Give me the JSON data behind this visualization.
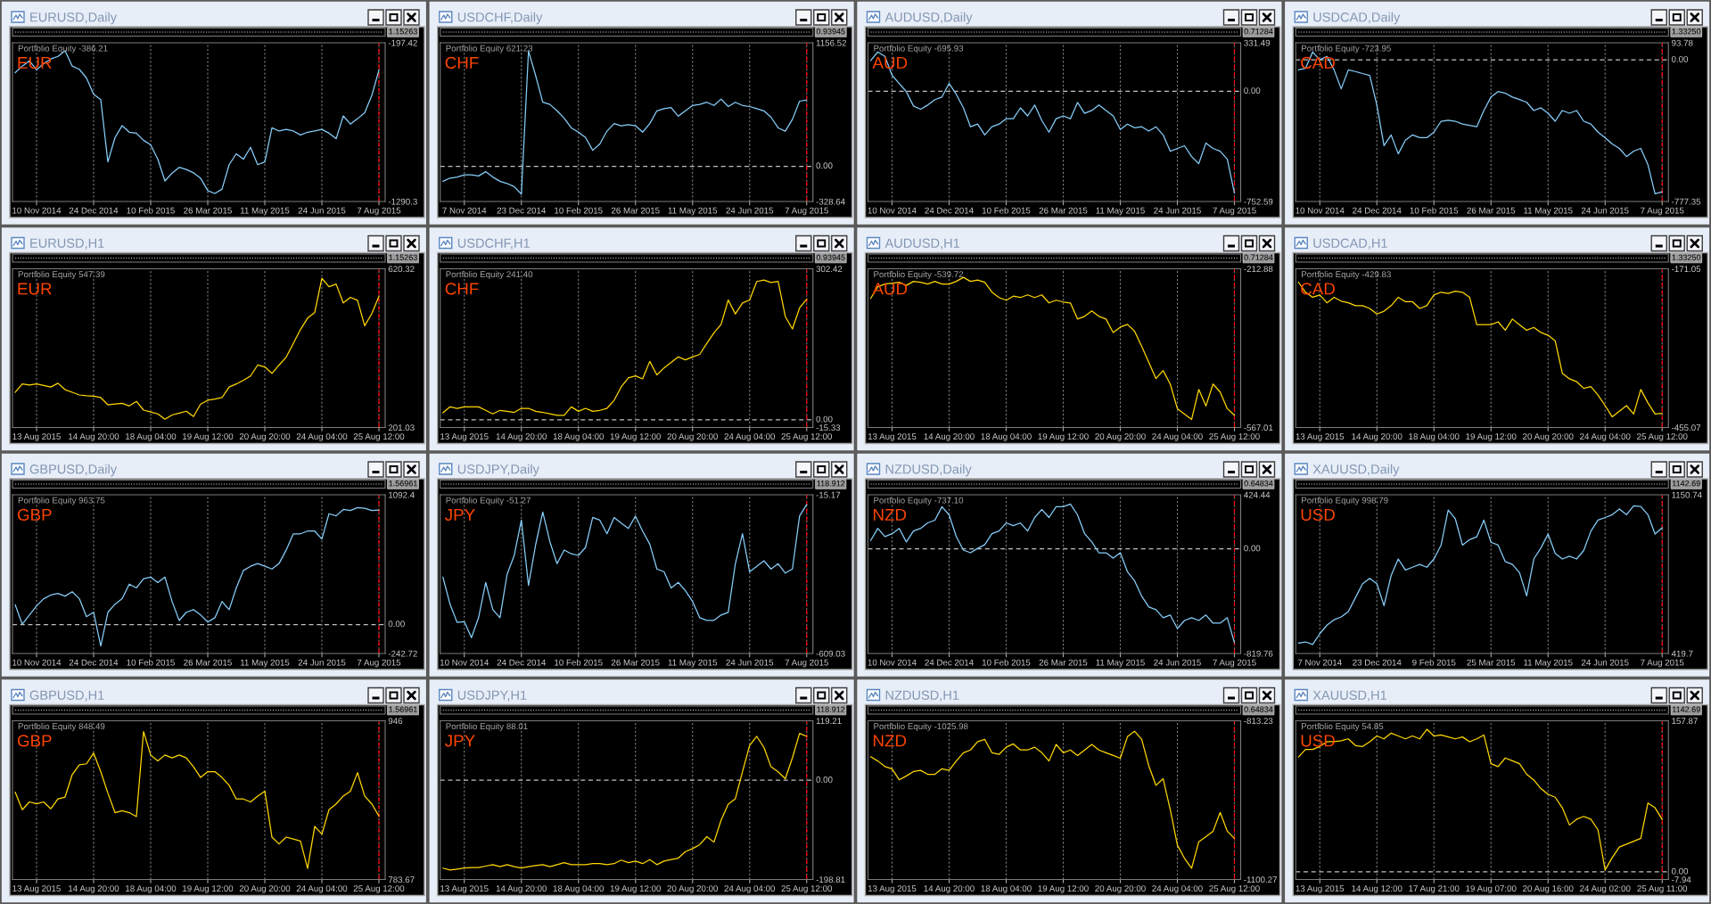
{
  "chart_data": [
    {
      "type": "line",
      "title": "EURUSD,Daily",
      "subtitle": "Portfolio Equity -386.21",
      "annotations": [
        "EUR",
        "1.15263"
      ],
      "categories": [
        null,
        null,
        null,
        "10 Nov 2014",
        null,
        null,
        null,
        null,
        null,
        null,
        null,
        "24 Dec 2014",
        null,
        null,
        null,
        null,
        null,
        null,
        null,
        "10 Feb 2015",
        null,
        null,
        null,
        null,
        null,
        null,
        null,
        "26 Mar 2015",
        null,
        null,
        null,
        null,
        null,
        null,
        null,
        "11 May 2015",
        null,
        null,
        null,
        null,
        null,
        null,
        null,
        "24 Jun 2015",
        null,
        null,
        null,
        null,
        null,
        null,
        null,
        "7 Aug 2015"
      ],
      "series": [
        {
          "color": "#87cefa",
          "values": [
            -403,
            -358,
            -321,
            -384,
            -340,
            -309,
            -291,
            -253,
            -358,
            -380,
            -440,
            -552,
            -589,
            -1018,
            -850,
            -768,
            -813,
            -820,
            -869,
            -900,
            -999,
            -1149,
            -1095,
            -1055,
            -1070,
            -1093,
            -1130,
            -1216,
            -1235,
            -1205,
            -1037,
            -962,
            -999,
            -917,
            -1037,
            -1018,
            -783,
            -805,
            -794,
            -805,
            -832,
            -813,
            -805,
            -794,
            -820,
            -858,
            -701,
            -757,
            -720,
            -680,
            -560,
            -386.21
          ]
        }
      ],
      "ylim": [
        -1290.3,
        -197.42
      ],
      "yticks": [
        -1290.3,
        -197.42
      ],
      "grid": "x",
      "ref_lines": [
        {
          "axis": "x",
          "value": "7 Aug 2015",
          "color": "#ff0000",
          "line_style": "dashed"
        }
      ]
    },
    {
      "type": "line",
      "title": "USDCHF,Daily",
      "subtitle": "Portfolio Equity 621.23",
      "annotations": [
        "CHF",
        "0.93945"
      ],
      "categories": [
        null,
        null,
        null,
        "7 Nov 2014",
        null,
        null,
        null,
        null,
        null,
        null,
        null,
        "23 Dec 2014",
        null,
        null,
        null,
        null,
        null,
        null,
        null,
        "10 Feb 2015",
        null,
        null,
        null,
        null,
        null,
        null,
        null,
        "26 Mar 2015",
        null,
        null,
        null,
        null,
        null,
        null,
        null,
        "11 May 2015",
        null,
        null,
        null,
        null,
        null,
        null,
        null,
        "24 Jun 2015",
        null,
        null,
        null,
        null,
        null,
        null,
        null,
        "7 Aug 2015"
      ],
      "series": [
        {
          "color": "#87cefa",
          "values": [
            -140,
            -110,
            -100,
            -80,
            -80,
            -90,
            -50,
            -100,
            -140,
            -160,
            -190,
            -260,
            1080,
            850,
            600,
            580,
            520,
            450,
            360,
            320,
            270,
            150,
            210,
            330,
            400,
            380,
            390,
            380,
            320,
            400,
            520,
            540,
            550,
            470,
            520,
            570,
            580,
            600,
            570,
            630,
            560,
            600,
            570,
            560,
            540,
            520,
            460,
            360,
            330,
            440,
            610,
            621.23
          ]
        }
      ],
      "ylim": [
        -328.64,
        1156.52
      ],
      "yticks": [
        -328.64,
        1156.52
      ],
      "grid": "x",
      "ref_lines": [
        {
          "axis": "y",
          "value": 0,
          "label": "0.00",
          "color": "#c0c0c0",
          "line_style": "dashed"
        },
        {
          "axis": "x",
          "value": "7 Aug 2015",
          "color": "#ff0000",
          "line_style": "dashed"
        }
      ]
    },
    {
      "type": "line",
      "title": "AUDUSD,Daily",
      "subtitle": "Portfolio Equity -695.93",
      "annotations": [
        "AUD",
        "0.71284"
      ],
      "categories": [
        null,
        null,
        null,
        "10 Nov 2014",
        null,
        null,
        null,
        null,
        null,
        null,
        null,
        "24 Dec 2014",
        null,
        null,
        null,
        null,
        null,
        null,
        null,
        "10 Feb 2015",
        null,
        null,
        null,
        null,
        null,
        null,
        null,
        "26 Mar 2015",
        null,
        null,
        null,
        null,
        null,
        null,
        null,
        "11 May 2015",
        null,
        null,
        null,
        null,
        null,
        null,
        null,
        "24 Jun 2015",
        null,
        null,
        null,
        null,
        null,
        null,
        null,
        "7 Aug 2015"
      ],
      "series": [
        {
          "color": "#87cefa",
          "values": [
            210,
            269,
            239,
            109,
            54,
            -2,
            -100,
            -122,
            -94,
            -57,
            -39,
            54,
            -20,
            -113,
            -242,
            -224,
            -298,
            -242,
            -224,
            -187,
            -187,
            -113,
            -168,
            -94,
            -200,
            -279,
            -187,
            -168,
            -187,
            -76,
            -150,
            -131,
            -94,
            -131,
            -168,
            -261,
            -224,
            -249,
            -242,
            -272,
            -242,
            -298,
            -409,
            -390,
            -372,
            -446,
            -494,
            -353,
            -390,
            -409,
            -464,
            -695.93
          ]
        }
      ],
      "ylim": [
        -752.59,
        331.49
      ],
      "yticks": [
        -752.59,
        331.49
      ],
      "grid": "x",
      "ref_lines": [
        {
          "axis": "y",
          "value": 0,
          "label": "0.00",
          "color": "#c0c0c0",
          "line_style": "dashed"
        },
        {
          "axis": "x",
          "value": "7 Aug 2015",
          "color": "#ff0000",
          "line_style": "dashed"
        }
      ]
    },
    {
      "type": "line",
      "title": "USDCAD,Daily",
      "subtitle": "Portfolio Equity -723.95",
      "annotations": [
        "CAD",
        "1.33250"
      ],
      "categories": [
        null,
        null,
        null,
        "10 Nov 2014",
        null,
        null,
        null,
        null,
        null,
        null,
        null,
        "24 Dec 2014",
        null,
        null,
        null,
        null,
        null,
        null,
        null,
        "10 Feb 2015",
        null,
        null,
        null,
        null,
        null,
        null,
        null,
        "26 Mar 2015",
        null,
        null,
        null,
        null,
        null,
        null,
        null,
        "11 May 2015",
        null,
        null,
        null,
        null,
        null,
        null,
        null,
        "24 Jun 2015",
        null,
        null,
        null,
        null,
        null,
        null,
        null,
        "7 Aug 2015"
      ],
      "series": [
        {
          "color": "#87cefa",
          "values": [
            -55,
            -46,
            43,
            0,
            19,
            -55,
            -159,
            -55,
            -64,
            -75,
            -85,
            -248,
            -471,
            -412,
            -516,
            -441,
            -412,
            -427,
            -427,
            -397,
            -337,
            -331,
            -337,
            -352,
            -360,
            -367,
            -278,
            -204,
            -174,
            -183,
            -204,
            -218,
            -233,
            -278,
            -263,
            -293,
            -337,
            -278,
            -293,
            -278,
            -337,
            -352,
            -397,
            -427,
            -462,
            -486,
            -531,
            -501,
            -486,
            -575,
            -735,
            -723.95
          ]
        }
      ],
      "ylim": [
        -777.35,
        93.78
      ],
      "yticks": [
        -777.35,
        93.78
      ],
      "grid": "x",
      "ref_lines": [
        {
          "axis": "y",
          "value": 0,
          "label": "0.00",
          "color": "#c0c0c0",
          "line_style": "dashed"
        },
        {
          "axis": "x",
          "value": "7 Aug 2015",
          "color": "#ff0000",
          "line_style": "dashed"
        }
      ]
    },
    {
      "type": "line",
      "title": "EURUSD,H1",
      "subtitle": "Portfolio Equity 547.39",
      "annotations": [
        "EUR",
        "1.15263"
      ],
      "categories": [
        null,
        null,
        null,
        "13 Aug 2015",
        null,
        null,
        null,
        null,
        null,
        null,
        null,
        "14 Aug 20:00",
        null,
        null,
        null,
        null,
        null,
        null,
        null,
        "18 Aug 04:00",
        null,
        null,
        null,
        null,
        null,
        null,
        null,
        "19 Aug 12:00",
        null,
        null,
        null,
        null,
        null,
        null,
        null,
        "20 Aug 20:00",
        null,
        null,
        null,
        null,
        null,
        null,
        null,
        "24 Aug 04:00",
        null,
        null,
        null,
        null,
        null,
        null,
        null,
        "25 Aug 12:00"
      ],
      "series": [
        {
          "color": "#ffd700",
          "values": [
            294,
            316,
            313,
            316,
            312,
            308,
            318,
            301,
            294,
            287,
            285,
            284,
            280,
            261,
            263,
            265,
            258,
            270,
            247,
            242,
            237,
            223,
            234,
            239,
            244,
            230,
            263,
            273,
            276,
            280,
            308,
            316,
            326,
            337,
            366,
            361,
            344,
            366,
            387,
            423,
            460,
            490,
            505,
            595,
            573,
            580,
            530,
            545,
            537,
            470,
            502,
            547.39
          ]
        }
      ],
      "ylim": [
        201.03,
        620.32
      ],
      "yticks": [
        201.03,
        620.32
      ],
      "grid": "x",
      "ref_lines": [
        {
          "axis": "x",
          "value": "25 Aug 12:00",
          "color": "#ff0000",
          "line_style": "dashed"
        }
      ]
    },
    {
      "type": "line",
      "title": "USDCHF,H1",
      "subtitle": "Portfolio Equity 241.40",
      "annotations": [
        "CHF",
        "0.93945"
      ],
      "categories": [
        null,
        null,
        null,
        "13 Aug 2015",
        null,
        null,
        null,
        null,
        null,
        null,
        null,
        "14 Aug 20:00",
        null,
        null,
        null,
        null,
        null,
        null,
        null,
        "18 Aug 04:00",
        null,
        null,
        null,
        null,
        null,
        null,
        null,
        "19 Aug 12:00",
        null,
        null,
        null,
        null,
        null,
        null,
        null,
        "20 Aug 20:00",
        null,
        null,
        null,
        null,
        null,
        null,
        null,
        "24 Aug 04:00",
        null,
        null,
        null,
        null,
        null,
        null,
        null,
        "25 Aug 12:00"
      ],
      "series": [
        {
          "color": "#ffd700",
          "values": [
            14,
            26,
            23,
            26,
            26,
            26,
            19,
            12,
            19,
            17,
            15,
            23,
            23,
            17,
            15,
            12,
            9,
            9,
            26,
            17,
            23,
            17,
            19,
            23,
            39,
            66,
            84,
            88,
            82,
            117,
            90,
            104,
            115,
            126,
            120,
            126,
            131,
            153,
            174,
            191,
            240,
            212,
            234,
            240,
            277,
            280,
            275,
            277,
            207,
            182,
            224,
            241.4
          ]
        }
      ],
      "ylim": [
        -15.33,
        302.42
      ],
      "yticks": [
        -15.33,
        302.42
      ],
      "grid": "x",
      "ref_lines": [
        {
          "axis": "y",
          "value": 0,
          "label": "0.00",
          "color": "#c0c0c0",
          "line_style": "dashed"
        },
        {
          "axis": "x",
          "value": "25 Aug 12:00",
          "color": "#ff0000",
          "line_style": "dashed"
        }
      ]
    },
    {
      "type": "line",
      "title": "AUDUSD,H1",
      "subtitle": "Portfolio Equity -539.72",
      "annotations": [
        "AUD",
        "0.71284"
      ],
      "categories": [
        null,
        null,
        null,
        "13 Aug 2015",
        null,
        null,
        null,
        null,
        null,
        null,
        null,
        "14 Aug 20:00",
        null,
        null,
        null,
        null,
        null,
        null,
        null,
        "18 Aug 04:00",
        null,
        null,
        null,
        null,
        null,
        null,
        null,
        "19 Aug 12:00",
        null,
        null,
        null,
        null,
        null,
        null,
        null,
        "20 Aug 20:00",
        null,
        null,
        null,
        null,
        null,
        null,
        null,
        "24 Aug 04:00",
        null,
        null,
        null,
        null,
        null,
        null,
        null,
        "25 Aug 12:00"
      ],
      "series": [
        {
          "color": "#ffd700",
          "values": [
            -279,
            -253,
            -247,
            -245,
            -243,
            -250,
            -241,
            -243,
            -247,
            -241,
            -247,
            -247,
            -241,
            -232,
            -241,
            -238,
            -243,
            -265,
            -277,
            -283,
            -274,
            -277,
            -271,
            -277,
            -271,
            -289,
            -283,
            -287,
            -289,
            -325,
            -319,
            -307,
            -319,
            -325,
            -355,
            -343,
            -337,
            -352,
            -386,
            -422,
            -458,
            -440,
            -470,
            -525,
            -537,
            -549,
            -482,
            -519,
            -470,
            -488,
            -525,
            -539.72
          ]
        }
      ],
      "ylim": [
        -567.01,
        -212.88
      ],
      "yticks": [
        -567.01,
        -212.88
      ],
      "grid": "x",
      "ref_lines": [
        {
          "axis": "x",
          "value": "25 Aug 12:00",
          "color": "#ff0000",
          "line_style": "dashed"
        }
      ]
    },
    {
      "type": "line",
      "title": "USDCAD,H1",
      "subtitle": "Portfolio Equity -429.83",
      "annotations": [
        "CAD",
        "1.33250"
      ],
      "categories": [
        null,
        null,
        null,
        "13 Aug 2015",
        null,
        null,
        null,
        null,
        null,
        null,
        null,
        "14 Aug 20:00",
        null,
        null,
        null,
        null,
        null,
        null,
        null,
        "18 Aug 04:00",
        null,
        null,
        null,
        null,
        null,
        null,
        null,
        "19 Aug 12:00",
        null,
        null,
        null,
        null,
        null,
        null,
        null,
        "20 Aug 20:00",
        null,
        null,
        null,
        null,
        null,
        null,
        null,
        "24 Aug 04:00",
        null,
        null,
        null,
        null,
        null,
        null,
        null,
        "25 Aug 12:00"
      ],
      "series": [
        {
          "color": "#ffd700",
          "values": [
            -195,
            -213,
            -222,
            -218,
            -232,
            -222,
            -229,
            -232,
            -237,
            -237,
            -242,
            -252,
            -247,
            -237,
            -222,
            -230,
            -230,
            -242,
            -237,
            -218,
            -213,
            -215,
            -211,
            -213,
            -222,
            -271,
            -271,
            -271,
            -266,
            -281,
            -261,
            -271,
            -281,
            -276,
            -285,
            -290,
            -300,
            -358,
            -368,
            -373,
            -385,
            -382,
            -397,
            -416,
            -436,
            -426,
            -416,
            -431,
            -387,
            -411,
            -431,
            -429.83
          ]
        }
      ],
      "ylim": [
        -455.07,
        -171.05
      ],
      "yticks": [
        -455.07,
        -171.05
      ],
      "grid": "x",
      "ref_lines": [
        {
          "axis": "x",
          "value": "25 Aug 12:00",
          "color": "#ff0000",
          "line_style": "dashed"
        }
      ]
    },
    {
      "type": "line",
      "title": "GBPUSD,Daily",
      "subtitle": "Portfolio Equity 963.75",
      "annotations": [
        "GBP",
        "1.56961"
      ],
      "categories": [
        null,
        null,
        null,
        "10 Nov 2014",
        null,
        null,
        null,
        null,
        null,
        null,
        null,
        "24 Dec 2014",
        null,
        null,
        null,
        null,
        null,
        null,
        null,
        "10 Feb 2015",
        null,
        null,
        null,
        null,
        null,
        null,
        null,
        "26 Mar 2015",
        null,
        null,
        null,
        null,
        null,
        null,
        null,
        "11 May 2015",
        null,
        null,
        null,
        null,
        null,
        null,
        null,
        "24 Jun 2015",
        null,
        null,
        null,
        null,
        null,
        null,
        null,
        "7 Aug 2015"
      ],
      "series": [
        {
          "color": "#87cefa",
          "values": [
            168,
            3,
            81,
            158,
            218,
            249,
            263,
            240,
            277,
            218,
            67,
            104,
            -179,
            104,
            172,
            218,
            341,
            309,
            386,
            400,
            354,
            400,
            195,
            35,
            104,
            126,
            81,
            22,
            58,
            195,
            126,
            309,
            456,
            491,
            514,
            491,
            468,
            514,
            628,
            764,
            764,
            787,
            787,
            720,
            933,
            915,
            969,
            960,
            985,
            979,
            960,
            963.75
          ]
        }
      ],
      "ylim": [
        -242.72,
        1092.4
      ],
      "yticks": [
        -242.72,
        1092.4
      ],
      "grid": "x",
      "ref_lines": [
        {
          "axis": "y",
          "value": 0,
          "label": "0.00",
          "color": "#c0c0c0",
          "line_style": "dashed"
        },
        {
          "axis": "x",
          "value": "7 Aug 2015",
          "color": "#ff0000",
          "line_style": "dashed"
        }
      ]
    },
    {
      "type": "line",
      "title": "USDJPY,Daily",
      "subtitle": "Portfolio Equity -51.27",
      "annotations": [
        "JPY",
        "118.912"
      ],
      "categories": [
        null,
        null,
        null,
        "10 Nov 2014",
        null,
        null,
        null,
        null,
        null,
        null,
        null,
        "24 Dec 2014",
        null,
        null,
        null,
        null,
        null,
        null,
        null,
        "10 Feb 2015",
        null,
        null,
        null,
        null,
        null,
        null,
        null,
        "26 Mar 2015",
        null,
        null,
        null,
        null,
        null,
        null,
        null,
        "11 May 2015",
        null,
        null,
        null,
        null,
        null,
        null,
        null,
        "24 Jun 2015",
        null,
        null,
        null,
        null,
        null,
        null,
        null,
        "7 Aug 2015"
      ],
      "series": [
        {
          "color": "#87cefa",
          "values": [
            -323,
            -425,
            -493,
            -490,
            -550,
            -475,
            -343,
            -445,
            -475,
            -313,
            -242,
            -110,
            -354,
            -202,
            -80,
            -191,
            -273,
            -222,
            -236,
            -242,
            -212,
            -100,
            -110,
            -161,
            -100,
            -121,
            -141,
            -95,
            -151,
            -200,
            -293,
            -303,
            -364,
            -343,
            -374,
            -414,
            -475,
            -485,
            -485,
            -465,
            -455,
            -273,
            -161,
            -303,
            -283,
            -262,
            -293,
            -273,
            -308,
            -293,
            -95,
            -51.27
          ]
        }
      ],
      "ylim": [
        -609.03,
        -15.17
      ],
      "yticks": [
        -609.03,
        -15.17
      ],
      "grid": "x",
      "ref_lines": [
        {
          "axis": "x",
          "value": "7 Aug 2015",
          "color": "#ff0000",
          "line_style": "dashed"
        }
      ]
    },
    {
      "type": "line",
      "title": "NZDUSD,Daily",
      "subtitle": "Portfolio Equity -737.10",
      "annotations": [
        "NZD",
        "0.64834"
      ],
      "categories": [
        null,
        null,
        null,
        "10 Nov 2014",
        null,
        null,
        null,
        null,
        null,
        null,
        null,
        "24 Dec 2014",
        null,
        null,
        null,
        null,
        null,
        null,
        null,
        "10 Feb 2015",
        null,
        null,
        null,
        null,
        null,
        null,
        null,
        "26 Mar 2015",
        null,
        null,
        null,
        null,
        null,
        null,
        null,
        "11 May 2015",
        null,
        null,
        null,
        null,
        null,
        null,
        null,
        "24 Jun 2015",
        null,
        null,
        null,
        null,
        null,
        null,
        null,
        "7 Aug 2015"
      ],
      "series": [
        {
          "color": "#87cefa",
          "values": [
            66,
            161,
            97,
            119,
            161,
            55,
            140,
            161,
            204,
            225,
            331,
            267,
            98,
            -9,
            -30,
            4,
            34,
            119,
            140,
            204,
            182,
            204,
            140,
            246,
            310,
            246,
            331,
            331,
            352,
            267,
            119,
            55,
            -30,
            -30,
            -72,
            -30,
            -179,
            -250,
            -370,
            -455,
            -476,
            -539,
            -518,
            -624,
            -561,
            -539,
            -561,
            -518,
            -582,
            -582,
            -539,
            -737.1
          ]
        }
      ],
      "ylim": [
        -819.76,
        424.44
      ],
      "yticks": [
        -819.76,
        424.44
      ],
      "grid": "x",
      "ref_lines": [
        {
          "axis": "y",
          "value": 0,
          "label": "0.00",
          "color": "#c0c0c0",
          "line_style": "dashed"
        },
        {
          "axis": "x",
          "value": "7 Aug 2015",
          "color": "#ff0000",
          "line_style": "dashed"
        }
      ]
    },
    {
      "type": "line",
      "title": "XAUUSD,Daily",
      "subtitle": "Portfolio Equity 998.79",
      "annotations": [
        "USD",
        "1142.69"
      ],
      "categories": [
        null,
        null,
        null,
        "7 Nov 2014",
        null,
        null,
        null,
        null,
        null,
        null,
        null,
        "23 Dec 2014",
        null,
        null,
        null,
        null,
        null,
        null,
        null,
        "9 Feb 2015",
        null,
        null,
        null,
        null,
        null,
        null,
        null,
        "25 Mar 2015",
        null,
        null,
        null,
        null,
        null,
        null,
        null,
        "11 May 2015",
        null,
        null,
        null,
        null,
        null,
        null,
        null,
        "24 Jun 2015",
        null,
        null,
        null,
        null,
        null,
        null,
        null,
        "7 Aug 2015"
      ],
      "series": [
        {
          "color": "#87cefa",
          "values": [
            467,
            473,
            461,
            511,
            550,
            575,
            588,
            613,
            677,
            741,
            766,
            741,
            640,
            779,
            855,
            804,
            817,
            830,
            817,
            855,
            919,
            1080,
            1040,
            919,
            944,
            957,
            1034,
            932,
            919,
            843,
            830,
            792,
            685,
            855,
            906,
            970,
            881,
            855,
            868,
            855,
            894,
            983,
            1034,
            1046,
            1059,
            1085,
            1059,
            1100,
            1097,
            1059,
            970,
            998.79
          ]
        }
      ],
      "ylim": [
        419.7,
        1150.74
      ],
      "yticks": [
        419.7,
        1150.74
      ],
      "grid": "x",
      "ref_lines": [
        {
          "axis": "x",
          "value": "7 Aug 2015",
          "color": "#ff0000",
          "line_style": "dashed"
        }
      ]
    },
    {
      "type": "line",
      "title": "GBPUSD,H1",
      "subtitle": "Portfolio Equity 848.49",
      "annotations": [
        "GBP",
        "1.56961"
      ],
      "categories": [
        null,
        null,
        null,
        "13 Aug 2015",
        null,
        null,
        null,
        null,
        null,
        null,
        null,
        "14 Aug 20:00",
        null,
        null,
        null,
        null,
        null,
        null,
        null,
        "18 Aug 04:00",
        null,
        null,
        null,
        null,
        null,
        null,
        null,
        "19 Aug 12:00",
        null,
        null,
        null,
        null,
        null,
        null,
        null,
        "20 Aug 20:00",
        null,
        null,
        null,
        null,
        null,
        null,
        null,
        "24 Aug 04:00",
        null,
        null,
        null,
        null,
        null,
        null,
        null,
        "25 Aug 12:00"
      ],
      "series": [
        {
          "color": "#ffd700",
          "values": [
            873,
            855,
            863,
            861,
            863,
            856,
            866,
            868,
            891,
            901,
            902,
            913,
            894,
            872,
            852,
            854,
            852,
            848,
            935,
            911,
            905,
            911,
            908,
            911,
            908,
            899,
            888,
            894,
            894,
            888,
            880,
            866,
            866,
            863,
            869,
            874,
            827,
            820,
            827,
            825,
            823,
            795,
            838,
            830,
            855,
            861,
            869,
            874,
            893,
            869,
            861,
            848.49
          ]
        }
      ],
      "ylim": [
        783.67,
        946
      ],
      "yticks": [
        783.67,
        946
      ],
      "grid": "x",
      "ref_lines": [
        {
          "axis": "x",
          "value": "25 Aug 12:00",
          "color": "#ff0000",
          "line_style": "dashed"
        }
      ]
    },
    {
      "type": "line",
      "title": "USDJPY,H1",
      "subtitle": "Portfolio Equity 88.01",
      "annotations": [
        "JPY",
        "118.912"
      ],
      "categories": [
        null,
        null,
        null,
        "13 Aug 2015",
        null,
        null,
        null,
        null,
        null,
        null,
        null,
        "14 Aug 20:00",
        null,
        null,
        null,
        null,
        null,
        null,
        null,
        "18 Aug 04:00",
        null,
        null,
        null,
        null,
        null,
        null,
        null,
        "19 Aug 12:00",
        null,
        null,
        null,
        null,
        null,
        null,
        null,
        "20 Aug 20:00",
        null,
        null,
        null,
        null,
        null,
        null,
        null,
        "24 Aug 04:00",
        null,
        null,
        null,
        null,
        null,
        null,
        null,
        "25 Aug 12:00"
      ],
      "series": [
        {
          "color": "#ffd700",
          "values": [
            -176,
            -180,
            -178,
            -176,
            -175,
            -175,
            -172,
            -169,
            -173,
            -169,
            -173,
            -176,
            -173,
            -171,
            -169,
            -173,
            -169,
            -165,
            -169,
            -169,
            -169,
            -167,
            -167,
            -169,
            -167,
            -160,
            -165,
            -162,
            -167,
            -159,
            -169,
            -162,
            -159,
            -156,
            -143,
            -137,
            -129,
            -113,
            -124,
            -80,
            -48,
            -37,
            17,
            70,
            88,
            66,
            27,
            17,
            3,
            45,
            94,
            88.01
          ]
        }
      ],
      "ylim": [
        -198.81,
        119.21
      ],
      "yticks": [
        -198.81,
        119.21
      ],
      "grid": "x",
      "ref_lines": [
        {
          "axis": "y",
          "value": 0,
          "label": "0.00",
          "color": "#c0c0c0",
          "line_style": "dashed"
        },
        {
          "axis": "x",
          "value": "25 Aug 12:00",
          "color": "#ff0000",
          "line_style": "dashed"
        }
      ]
    },
    {
      "type": "line",
      "title": "NZDUSD,H1",
      "subtitle": "Portfolio Equity -1025.98",
      "annotations": [
        "NZD",
        "0.64834"
      ],
      "categories": [
        null,
        null,
        null,
        "13 Aug 2015",
        null,
        null,
        null,
        null,
        null,
        null,
        null,
        "14 Aug 20:00",
        null,
        null,
        null,
        null,
        null,
        null,
        null,
        "18 Aug 04:00",
        null,
        null,
        null,
        null,
        null,
        null,
        null,
        "19 Aug 12:00",
        null,
        null,
        null,
        null,
        null,
        null,
        null,
        "20 Aug 20:00",
        null,
        null,
        null,
        null,
        null,
        null,
        null,
        "24 Aug 04:00",
        null,
        null,
        null,
        null,
        null,
        null,
        null,
        "25 Aug 12:00"
      ],
      "series": [
        {
          "color": "#ffd700",
          "values": [
            -878,
            -886,
            -896,
            -900,
            -920,
            -913,
            -905,
            -903,
            -910,
            -910,
            -900,
            -903,
            -886,
            -871,
            -866,
            -851,
            -847,
            -871,
            -874,
            -861,
            -855,
            -866,
            -866,
            -861,
            -871,
            -886,
            -856,
            -871,
            -866,
            -876,
            -866,
            -856,
            -866,
            -871,
            -876,
            -881,
            -842,
            -832,
            -847,
            -895,
            -930,
            -918,
            -974,
            -1038,
            -1062,
            -1080,
            -1032,
            -1023,
            -1013,
            -979,
            -1013,
            -1025.98
          ]
        }
      ],
      "ylim": [
        -1100.27,
        -813.23
      ],
      "yticks": [
        -1100.27,
        -813.23
      ],
      "grid": "x",
      "ref_lines": [
        {
          "axis": "x",
          "value": "25 Aug 12:00",
          "color": "#ff0000",
          "line_style": "dashed"
        }
      ]
    },
    {
      "type": "line",
      "title": "XAUUSD,H1",
      "subtitle": "Portfolio Equity 54.85",
      "annotations": [
        "USD",
        "1142.69"
      ],
      "categories": [
        null,
        null,
        null,
        "13 Aug 2015",
        null,
        null,
        null,
        null,
        null,
        null,
        null,
        "14 Aug 12:00",
        null,
        null,
        null,
        null,
        null,
        null,
        null,
        "17 Aug 21:00",
        null,
        null,
        null,
        null,
        null,
        null,
        null,
        "19 Aug 07:00",
        null,
        null,
        null,
        null,
        null,
        null,
        null,
        "20 Aug 16:00",
        null,
        null,
        null,
        null,
        null,
        null,
        null,
        "24 Aug 02:00",
        null,
        null,
        null,
        null,
        null,
        null,
        null,
        "25 Aug 11:00"
      ],
      "series": [
        {
          "color": "#ffd700",
          "values": [
            120,
            128,
            128,
            131,
            136,
            136,
            137,
            139,
            132,
            131,
            136,
            142,
            139,
            145,
            142,
            139,
            142,
            139,
            149,
            142,
            143,
            141,
            139,
            141,
            136,
            139,
            143,
            113,
            110,
            119,
            116,
            113,
            102,
            96,
            87,
            81,
            78,
            67,
            49,
            55,
            58,
            55,
            44,
            2,
            15,
            26,
            29,
            32,
            35,
            72,
            67,
            54.85
          ]
        }
      ],
      "ylim": [
        -7.94,
        157.87
      ],
      "yticks": [
        -7.94,
        157.87
      ],
      "grid": "x",
      "ref_lines": [
        {
          "axis": "y",
          "value": 0,
          "label": "0.00",
          "color": "#c0c0c0",
          "line_style": "dashed"
        },
        {
          "axis": "x",
          "value": "25 Aug 11:00",
          "color": "#ff0000",
          "line_style": "dashed"
        }
      ]
    }
  ]
}
